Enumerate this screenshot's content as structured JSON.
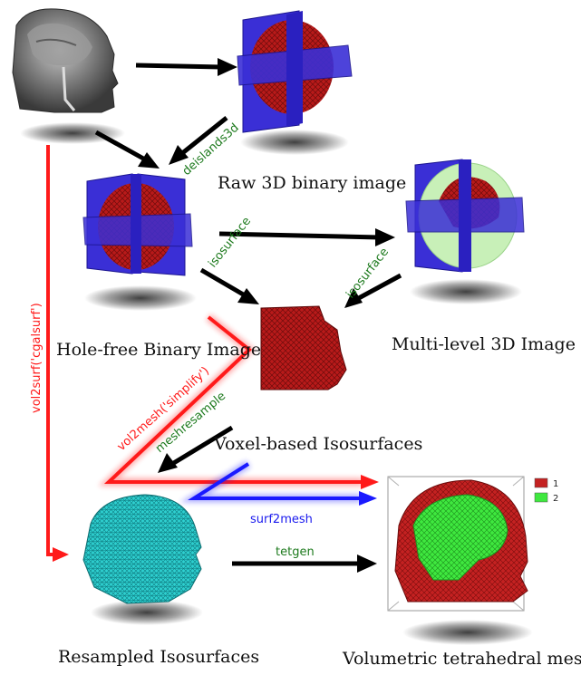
{
  "colors": {
    "red_arrow": "#ff1a1a",
    "blue_arrow": "#1a1aff",
    "black_arrow": "#000000",
    "green_label": "#1d7a1d",
    "blue_label": "#1a1aee",
    "red_label": "#ff1a1a",
    "plane_blue": "#3a2fd6",
    "binary_red": "#cc1b1b",
    "level_green": "#c8f0b8",
    "mesh_cyan": "#2ed0d0",
    "mesh_red": "#c42121",
    "mesh_green": "#3fe83f"
  },
  "captions": {
    "raw": "Raw 3D binary image",
    "holefree": "Hole-free Binary Image",
    "multilevel": "Multi-level 3D Image",
    "voxel": "Voxel-based Isosurfaces",
    "resampled": "Resampled Isosurfaces",
    "volumetric": "Volumetric tetrahedral mesh"
  },
  "labels": {
    "deislands": "deislands3d",
    "isosurface1": "isosurface",
    "isosurface2": "isosurface",
    "meshresample": "meshresample",
    "simplify": "vol2mesh('simplify')",
    "cgalsurf": "vol2surf('cgalsurf')",
    "surf2mesh": "surf2mesh",
    "tetgen": "tetgen"
  },
  "legend": [
    {
      "label": "1",
      "color": "#c42121"
    },
    {
      "label": "2",
      "color": "#3fe83f"
    }
  ],
  "icons": {
    "mri": "mri-head-slice-icon",
    "raw": "raw-binary-planes-icon",
    "holefree": "holefree-binary-planes-icon",
    "multilevel": "multilevel-planes-icon",
    "voxel": "voxel-isosurface-icon",
    "resampled": "resampled-head-mesh-icon",
    "volumetric": "tetrahedral-mesh-icon"
  }
}
